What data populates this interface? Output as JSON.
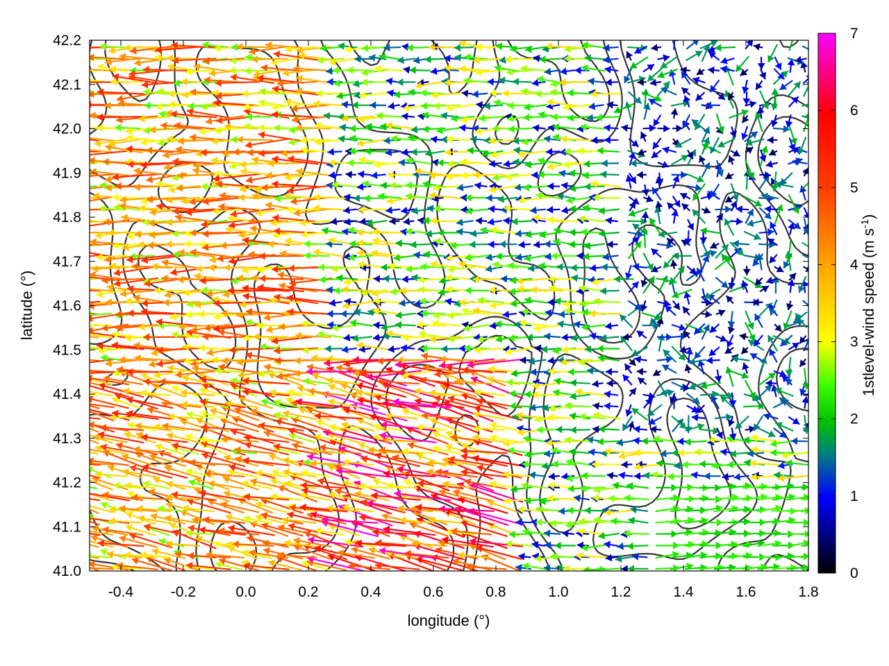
{
  "chart_data": {
    "type": "vector-field",
    "xlabel": "longitude (°)",
    "ylabel": "latitude (°)",
    "xlim": [
      -0.5,
      1.8
    ],
    "ylim": [
      41.0,
      42.2
    ],
    "xticks": [
      "-0.4",
      "-0.2",
      "0.0",
      "0.2",
      "0.4",
      "0.6",
      "0.8",
      "1.0",
      "1.2",
      "1.4",
      "1.6",
      "1.8"
    ],
    "yticks": [
      "41.0",
      "41.1",
      "41.2",
      "41.3",
      "41.4",
      "41.5",
      "41.6",
      "41.7",
      "41.8",
      "41.9",
      "42.0",
      "42.1",
      "42.2"
    ],
    "grid": true,
    "colorbar": {
      "label_main": "1stlevel-wind speed (m s",
      "label_sup": "-1",
      "label_end": ")",
      "range": [
        0,
        7
      ],
      "ticks": [
        "0",
        "1",
        "2",
        "3",
        "4",
        "5",
        "6",
        "7"
      ],
      "colors": [
        "#000000",
        "#0000ff",
        "#00aa00",
        "#00ff00",
        "#ffff00",
        "#ffa500",
        "#ff4000",
        "#ff0000",
        "#ff00ff"
      ]
    },
    "wind_regions": [
      {
        "area": "west",
        "lon_range": [
          -0.5,
          0.3
        ],
        "lat_range": [
          41.0,
          42.2
        ],
        "direction": "westward",
        "speed_range": [
          2.5,
          5.5
        ]
      },
      {
        "area": "central",
        "lon_range": [
          0.3,
          0.9
        ],
        "lat_range": [
          41.0,
          41.5
        ],
        "direction": "westward",
        "speed_range": [
          3.0,
          7.0
        ]
      },
      {
        "area": "north-central",
        "lon_range": [
          0.1,
          1.2
        ],
        "lat_range": [
          41.5,
          42.2
        ],
        "direction": "westward",
        "speed_range": [
          0.5,
          3.5
        ]
      },
      {
        "area": "east",
        "lon_range": [
          1.2,
          1.8
        ],
        "lat_range": [
          41.3,
          42.2
        ],
        "direction": "variable",
        "speed_range": [
          0.3,
          2.0
        ]
      },
      {
        "area": "southeast",
        "lon_range": [
          1.3,
          1.8
        ],
        "lat_range": [
          41.0,
          41.2
        ],
        "direction": "eastward",
        "speed_range": [
          2.0,
          2.5
        ]
      }
    ]
  }
}
